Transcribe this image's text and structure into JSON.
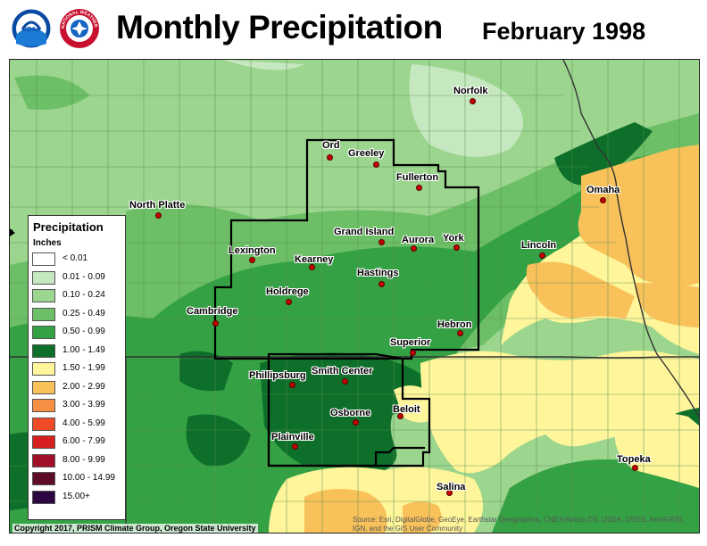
{
  "header": {
    "title": "Monthly Precipitation",
    "date": "February 1998"
  },
  "logos": {
    "noaa": {
      "text": "NOAA",
      "icon": "noaa-logo"
    },
    "nws": {
      "text": "NATIONAL WEATHER SERVICE",
      "icon": "nws-logo"
    }
  },
  "legend": {
    "title": "Precipitation",
    "units": "Inches",
    "classes": [
      {
        "label": "< 0.01",
        "color": "#ffffff"
      },
      {
        "label": "0.01 - 0.09",
        "color": "#c6e8c0"
      },
      {
        "label": "0.10 - 0.24",
        "color": "#9bd58e"
      },
      {
        "label": "0.25 - 0.49",
        "color": "#6cbf66"
      },
      {
        "label": "0.50 - 0.99",
        "color": "#34a244"
      },
      {
        "label": "1.00 - 1.49",
        "color": "#0d6f2a"
      },
      {
        "label": "1.50 - 1.99",
        "color": "#fff59a"
      },
      {
        "label": "2.00 - 2.99",
        "color": "#f8c15a"
      },
      {
        "label": "3.00 - 3.99",
        "color": "#f78f43"
      },
      {
        "label": "4.00 - 5.99",
        "color": "#ef4b27"
      },
      {
        "label": "6.00 - 7.99",
        "color": "#d71f1f"
      },
      {
        "label": "8.00 - 9.99",
        "color": "#a0102a"
      },
      {
        "label": "10.00 - 14.99",
        "color": "#5e0b26"
      },
      {
        "label": "15.00+",
        "color": "#2c0640"
      }
    ]
  },
  "cities": [
    {
      "name": "Norfolk"
    },
    {
      "name": "Ord"
    },
    {
      "name": "Greeley"
    },
    {
      "name": "Fullerton"
    },
    {
      "name": "North Platte"
    },
    {
      "name": "Omaha"
    },
    {
      "name": "Grand Island"
    },
    {
      "name": "Aurora"
    },
    {
      "name": "York"
    },
    {
      "name": "Lincoln"
    },
    {
      "name": "Lexington"
    },
    {
      "name": "Kearney"
    },
    {
      "name": "Hastings"
    },
    {
      "name": "Holdrege"
    },
    {
      "name": "Cambridge"
    },
    {
      "name": "Hebron"
    },
    {
      "name": "Superior"
    },
    {
      "name": "Phillipsburg"
    },
    {
      "name": "Smith Center"
    },
    {
      "name": "Osborne"
    },
    {
      "name": "Beloit"
    },
    {
      "name": "Plainville"
    },
    {
      "name": "Topeka"
    },
    {
      "name": "Salina"
    }
  ],
  "footer": {
    "copyright": "Copyright 2017, PRISM Climate Group, Oregon State University",
    "source": "Source: Esri, DigitalGlobe, GeoEye, Earthstar Geographics, CNES/Airbus DS, USDA, USGS, AeroGRID, IGN, and the GIS User Community"
  }
}
